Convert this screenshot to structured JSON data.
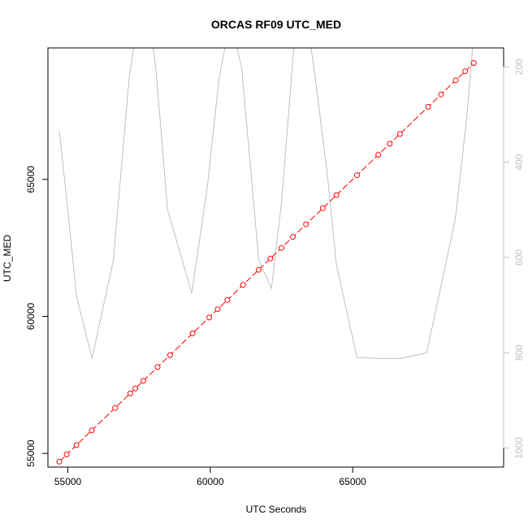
{
  "chart_data": {
    "type": "line",
    "title": "ORCAS RF09 UTC_MED",
    "xlabel": "UTC Seconds",
    "ylabel": "UTC_MED",
    "xlim": [
      54300,
      70300
    ],
    "ylim": [
      54500,
      69800
    ],
    "x_ticks": [
      55000,
      60000,
      65000
    ],
    "y_ticks": [
      55000,
      60000,
      65000
    ],
    "grid": false,
    "series": [
      {
        "role": "primary",
        "color": "#ff0000",
        "marker": "open-circle",
        "axis": "left",
        "x": [
          54700,
          54960,
          55300,
          55840,
          56660,
          57190,
          57370,
          57650,
          58150,
          58590,
          59380,
          59960,
          60260,
          60600,
          61150,
          61700,
          62110,
          62500,
          62900,
          63360,
          63950,
          64430,
          65150,
          65900,
          66300,
          66660,
          67650,
          68100,
          68620,
          68950,
          69250
        ],
        "y": [
          54700,
          54960,
          55300,
          55840,
          56660,
          57190,
          57370,
          57650,
          58150,
          58590,
          59380,
          59960,
          60260,
          60600,
          61150,
          61700,
          62110,
          62500,
          62900,
          63360,
          63950,
          64430,
          65150,
          65900,
          66300,
          66660,
          67650,
          68100,
          68620,
          68950,
          69250
        ]
      },
      {
        "role": "secondary",
        "color": "#c0c0c0",
        "marker": "none",
        "axis": "right",
        "x": [
          54700,
          55000,
          55300,
          55850,
          56600,
          57150,
          57400,
          57900,
          58100,
          58500,
          59350,
          59900,
          60300,
          60700,
          61100,
          61700,
          62150,
          62500,
          63050,
          63400,
          63700,
          64100,
          64430,
          65150,
          66000,
          66700,
          67600,
          68600,
          69000,
          69250
        ],
        "y": [
          334,
          500,
          680,
          812,
          605,
          225,
          120,
          110,
          210,
          500,
          675,
          450,
          228,
          100,
          200,
          605,
          665,
          485,
          70,
          100,
          230,
          420,
          615,
          810,
          812,
          812,
          800,
          520,
          310,
          130
        ]
      }
    ],
    "right_axis": {
      "lim": [
        160,
        1040
      ],
      "ticks": [
        200,
        400,
        600,
        800,
        1000
      ],
      "color": "#c0c0c0"
    }
  }
}
